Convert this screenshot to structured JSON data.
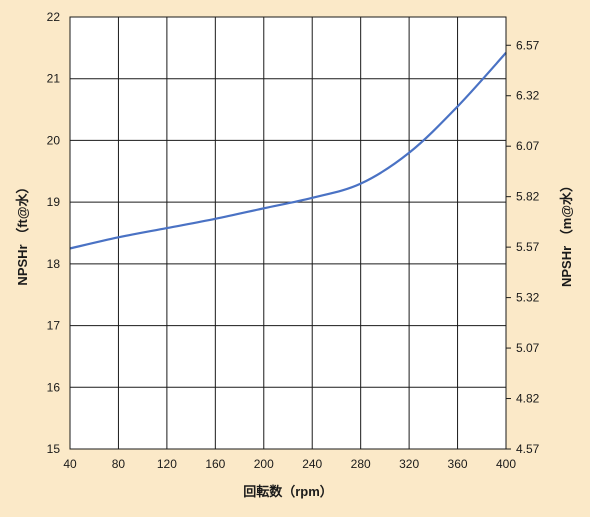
{
  "chart_data": {
    "type": "line",
    "xlabel": "回転数（rpm）",
    "ylabel": "NPSHr （ft@水）",
    "ylabel_right": "NPSHr （m@水）",
    "x_ticks": [
      40,
      80,
      120,
      160,
      200,
      240,
      280,
      320,
      360,
      400
    ],
    "y_ticks": [
      15,
      16,
      17,
      18,
      19,
      20,
      21,
      22
    ],
    "y_right_ticks": [
      "4.57",
      "4.82",
      "5.07",
      "5.32",
      "5.57",
      "5.82",
      "6.07",
      "6.32",
      "6.57"
    ],
    "xlim": [
      40,
      400
    ],
    "ylim": [
      15,
      22
    ],
    "y_right_lim": [
      4.57,
      6.71
    ],
    "grid": true,
    "series": [
      {
        "color": "#4a72c4",
        "x": [
          40,
          80,
          120,
          160,
          200,
          240,
          280,
          320,
          360,
          400
        ],
        "y": [
          18.25,
          18.43,
          18.58,
          18.73,
          18.9,
          19.07,
          19.3,
          19.8,
          20.55,
          21.42
        ]
      }
    ]
  },
  "colors": {
    "background": "#fbe9c8",
    "plot_background": "#ffffff",
    "grid": "#1a1a1a",
    "line": "#4a72c4"
  }
}
